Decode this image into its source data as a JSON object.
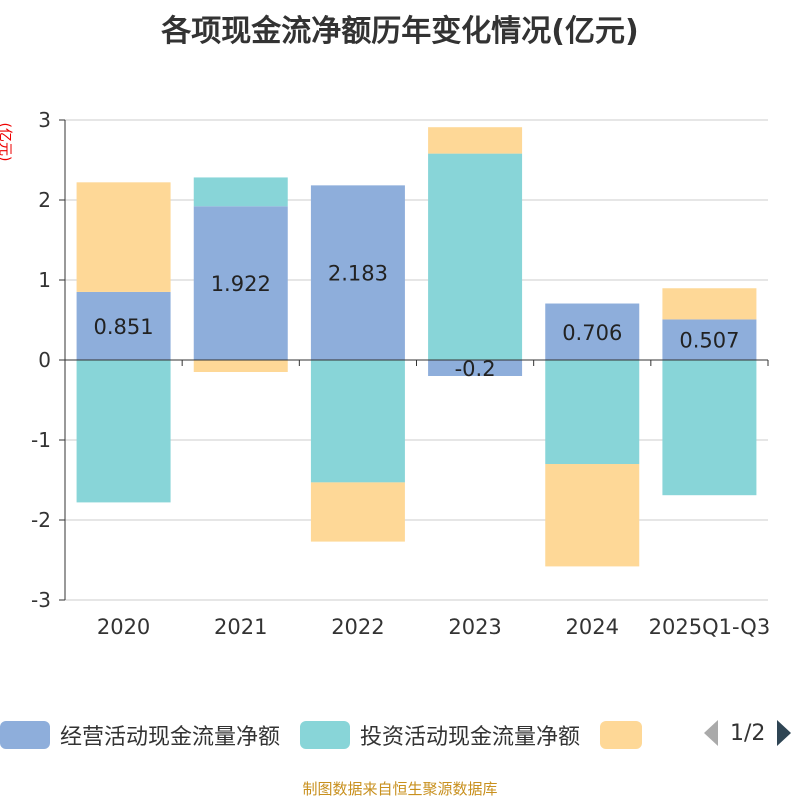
{
  "chart_data": {
    "type": "bar",
    "stacked": true,
    "title": "各项现金流净额历年变化情况(亿元)",
    "ylabel": "(亿元)",
    "ylim": [
      -3,
      3
    ],
    "yticks": [
      3,
      2,
      1,
      0,
      -1,
      -2,
      -3
    ],
    "grid": true,
    "categories": [
      "2020",
      "2021",
      "2022",
      "2023",
      "2024",
      "2025Q1-Q3"
    ],
    "series": [
      {
        "name": "经营活动现金流量净额",
        "color": "#8eaedb",
        "values": [
          0.851,
          1.922,
          2.183,
          -0.2,
          0.706,
          0.507
        ],
        "labels": true
      },
      {
        "name": "投资活动现金流量净额",
        "color": "#88d5d8",
        "values": [
          -1.78,
          0.36,
          -1.53,
          2.58,
          -1.3,
          -1.69
        ]
      },
      {
        "name": "",
        "color": "#fed897",
        "values": [
          1.37,
          -0.15,
          -0.74,
          0.33,
          -1.28,
          0.39
        ]
      }
    ],
    "legend_position": "bottom"
  },
  "legend": {
    "page": "1/2"
  },
  "source": "制图数据来自恒生聚源数据库"
}
